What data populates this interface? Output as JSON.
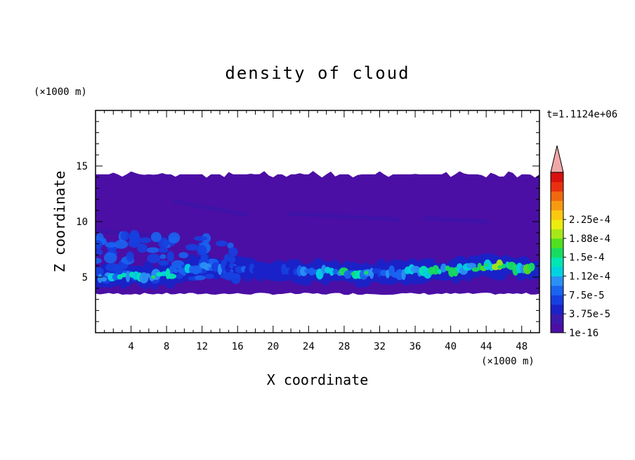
{
  "chart_data": {
    "type": "heatmap",
    "title": "density of cloud",
    "xlabel": "X coordinate",
    "ylabel": "Z coordinate",
    "x_unit": "(×1000 m)",
    "y_unit": "(×1000 m)",
    "time_label": "t=1.1124e+06",
    "xlim": [
      0,
      50
    ],
    "ylim": [
      0,
      20
    ],
    "x_ticks": [
      4,
      8,
      12,
      16,
      20,
      24,
      28,
      32,
      36,
      40,
      44,
      48
    ],
    "y_ticks": [
      5,
      10,
      15
    ],
    "colorbar": {
      "levels": [
        "1e-16",
        "3.75e-5",
        "7.5e-5",
        "1.12e-4",
        "1.5e-4",
        "1.88e-4",
        "2.25e-4"
      ],
      "colors": [
        "#4b0fa5",
        "#3c1aae",
        "#1a22c8",
        "#1640e0",
        "#1a64f0",
        "#2a90f4",
        "#00d2e0",
        "#00e6b4",
        "#18dc60",
        "#50e020",
        "#a8e818",
        "#ecec10",
        "#fcc810",
        "#f89a10",
        "#f06810",
        "#e83010",
        "#d81010"
      ],
      "over_color": "#f2a7a7"
    },
    "cloud_layer": {
      "z_bottom_approx": 3.4,
      "z_top_approx": 14.5,
      "base_color": "#4b0fa5",
      "dense_band": [
        {
          "x": 1,
          "z": 5.0,
          "value": 7.5e-05
        },
        {
          "x": 4,
          "z": 5.3,
          "value": 0.000112
        },
        {
          "x": 7,
          "z": 5.0,
          "value": 0.000112
        },
        {
          "x": 12,
          "z": 6.0,
          "value": 7.5e-05
        },
        {
          "x": 20,
          "z": 5.6,
          "value": 3.75e-05
        },
        {
          "x": 28,
          "z": 5.4,
          "value": 0.000112
        },
        {
          "x": 32,
          "z": 5.4,
          "value": 7.5e-05
        },
        {
          "x": 37,
          "z": 5.5,
          "value": 0.000112
        },
        {
          "x": 42,
          "z": 5.8,
          "value": 0.000112
        },
        {
          "x": 45,
          "z": 6.0,
          "value": 0.00015
        },
        {
          "x": 49,
          "z": 5.8,
          "value": 0.000112
        }
      ]
    }
  }
}
